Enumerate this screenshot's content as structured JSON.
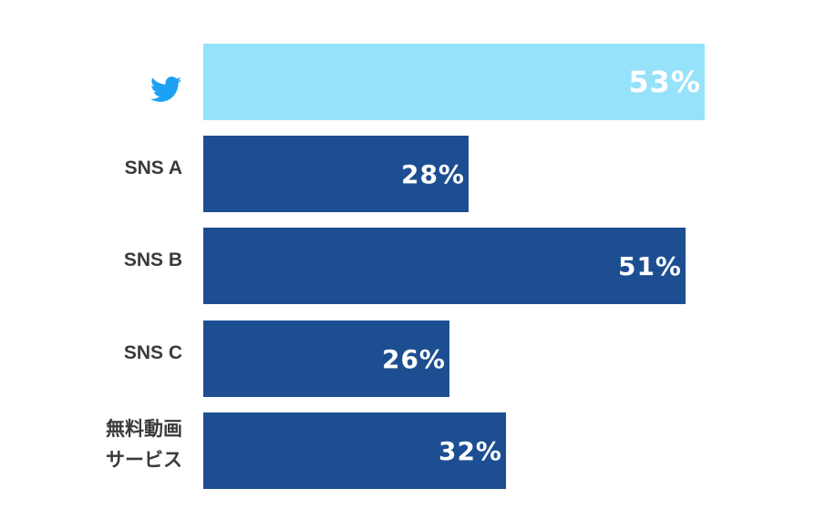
{
  "chart_data": {
    "type": "bar",
    "orientation": "horizontal",
    "categories": [
      "",
      "SNS A",
      "SNS B",
      "SNS C",
      "無料動画\nサービス"
    ],
    "category_icons": [
      "twitter-bird-icon",
      null,
      null,
      null,
      null
    ],
    "values": [
      53,
      28,
      51,
      26,
      32
    ],
    "value_labels": [
      "53%",
      "28%",
      "51%",
      "26%",
      "32%"
    ],
    "unit": "%",
    "xlim": [
      0,
      100
    ],
    "grid": false,
    "colors": [
      "#96E2FA",
      "#1D4E91",
      "#1D4E91",
      "#1D4E91",
      "#1D4E91"
    ],
    "icon_color": "#1DA1F2"
  }
}
